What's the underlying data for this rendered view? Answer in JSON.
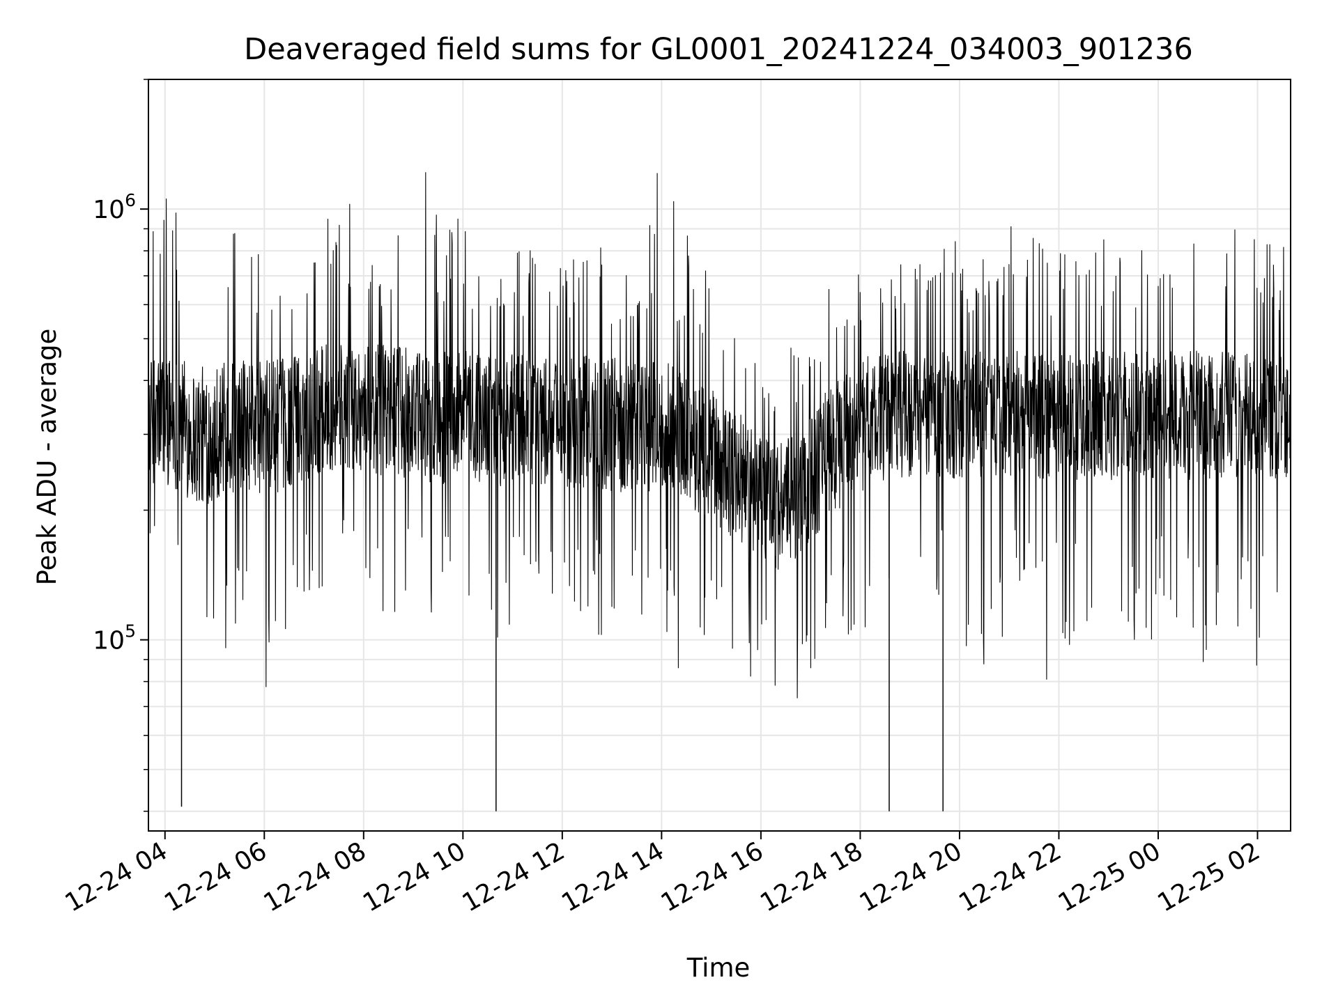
{
  "chart_data": {
    "type": "line",
    "title": "Deaveraged field sums for GL0001_20241224_034003_901236",
    "xlabel": "Time",
    "ylabel": "Peak ADU - average",
    "yscale": "log",
    "xlim": [
      "2024-12-24 03:40",
      "2024-12-25 02:40"
    ],
    "ylim": [
      36000,
      2000000
    ],
    "grid": true,
    "line_color": "#000000",
    "grid_color": "#e6e6e6",
    "x_ticks": [
      {
        "value": "2024-12-24 04:00",
        "label": "12-24 04"
      },
      {
        "value": "2024-12-24 06:00",
        "label": "12-24 06"
      },
      {
        "value": "2024-12-24 08:00",
        "label": "12-24 08"
      },
      {
        "value": "2024-12-24 10:00",
        "label": "12-24 10"
      },
      {
        "value": "2024-12-24 12:00",
        "label": "12-24 12"
      },
      {
        "value": "2024-12-24 14:00",
        "label": "12-24 14"
      },
      {
        "value": "2024-12-24 16:00",
        "label": "12-24 16"
      },
      {
        "value": "2024-12-24 18:00",
        "label": "12-24 18"
      },
      {
        "value": "2024-12-24 20:00",
        "label": "12-24 20"
      },
      {
        "value": "2024-12-24 22:00",
        "label": "12-24 22"
      },
      {
        "value": "2024-12-25 00:00",
        "label": "12-25 00"
      },
      {
        "value": "2024-12-25 02:00",
        "label": "12-25 02"
      }
    ],
    "y_major_ticks": [
      {
        "value": 100000,
        "base": "10",
        "exp": "5"
      },
      {
        "value": 1000000,
        "base": "10",
        "exp": "6"
      }
    ],
    "series": [
      {
        "x": [
          "2024-12-24 03:40",
          "2024-12-24 04:00",
          "2024-12-24 04:20",
          "2024-12-24 04:40",
          "2024-12-24 05:00",
          "2024-12-24 05:20",
          "2024-12-24 05:40",
          "2024-12-24 06:00",
          "2024-12-24 06:20",
          "2024-12-24 06:40",
          "2024-12-24 07:00",
          "2024-12-24 07:20",
          "2024-12-24 07:40",
          "2024-12-24 08:00",
          "2024-12-24 08:20",
          "2024-12-24 08:40",
          "2024-12-24 09:00",
          "2024-12-24 09:20",
          "2024-12-24 09:40",
          "2024-12-24 10:00",
          "2024-12-24 10:20",
          "2024-12-24 10:40",
          "2024-12-24 11:00",
          "2024-12-24 11:20",
          "2024-12-24 11:40",
          "2024-12-24 12:00",
          "2024-12-24 12:20",
          "2024-12-24 12:40",
          "2024-12-24 13:00",
          "2024-12-24 13:20",
          "2024-12-24 13:40",
          "2024-12-24 14:00",
          "2024-12-24 14:20",
          "2024-12-24 14:40",
          "2024-12-24 15:00",
          "2024-12-24 15:20",
          "2024-12-24 15:40",
          "2024-12-24 16:00",
          "2024-12-24 16:20",
          "2024-12-24 16:40",
          "2024-12-24 17:00",
          "2024-12-24 17:20",
          "2024-12-24 17:40",
          "2024-12-24 18:00",
          "2024-12-24 18:20",
          "2024-12-24 18:40",
          "2024-12-24 19:00",
          "2024-12-24 19:20",
          "2024-12-24 19:40",
          "2024-12-24 20:00",
          "2024-12-24 20:20",
          "2024-12-24 20:40",
          "2024-12-24 21:00",
          "2024-12-24 21:20",
          "2024-12-24 21:40",
          "2024-12-24 22:00",
          "2024-12-24 22:20",
          "2024-12-24 22:40",
          "2024-12-24 23:00",
          "2024-12-24 23:20",
          "2024-12-24 23:40",
          "2024-12-25 00:00",
          "2024-12-25 00:20",
          "2024-12-25 00:40",
          "2024-12-25 01:00",
          "2024-12-25 01:20",
          "2024-12-25 01:40",
          "2024-12-25 02:00",
          "2024-12-25 02:20",
          "2024-12-25 02:40"
        ],
        "y_low": [
          130000,
          160000,
          150000,
          70000,
          85000,
          95000,
          110000,
          60000,
          75000,
          130000,
          120000,
          140000,
          150000,
          135000,
          110000,
          105000,
          95000,
          90000,
          110000,
          120000,
          95000,
          80000,
          100000,
          110000,
          80000,
          100000,
          85000,
          100000,
          80000,
          90000,
          100000,
          110000,
          85000,
          90000,
          95000,
          100000,
          75000,
          85000,
          70000,
          65000,
          80000,
          90000,
          100000,
          90000,
          100000,
          110000,
          90000,
          95000,
          110000,
          90000,
          80000,
          95000,
          100000,
          110000,
          75000,
          95000,
          90000,
          85000,
          90000,
          100000,
          95000,
          100000,
          110000,
          90000,
          85000,
          95000,
          90000,
          85000,
          100000,
          120000
        ],
        "y_q1": [
          230000,
          230000,
          220000,
          200000,
          210000,
          215000,
          220000,
          215000,
          220000,
          230000,
          240000,
          245000,
          250000,
          245000,
          240000,
          240000,
          235000,
          230000,
          230000,
          235000,
          230000,
          225000,
          230000,
          230000,
          225000,
          225000,
          225000,
          225000,
          220000,
          220000,
          220000,
          220000,
          210000,
          200000,
          190000,
          175000,
          160000,
          150000,
          145000,
          150000,
          165000,
          185000,
          205000,
          220000,
          230000,
          235000,
          235000,
          235000,
          235000,
          235000,
          235000,
          235000,
          235000,
          235000,
          235000,
          235000,
          235000,
          235000,
          235000,
          235000,
          235000,
          235000,
          235000,
          235000,
          235000,
          235000,
          235000,
          235000,
          235000,
          235000
        ],
        "y_mid": [
          330000,
          340000,
          330000,
          310000,
          315000,
          320000,
          325000,
          320000,
          325000,
          335000,
          345000,
          350000,
          355000,
          350000,
          345000,
          345000,
          340000,
          335000,
          335000,
          340000,
          335000,
          330000,
          335000,
          335000,
          330000,
          330000,
          330000,
          330000,
          325000,
          325000,
          325000,
          325000,
          310000,
          295000,
          275000,
          255000,
          235000,
          220000,
          210000,
          215000,
          240000,
          270000,
          300000,
          320000,
          335000,
          340000,
          340000,
          340000,
          340000,
          340000,
          340000,
          340000,
          340000,
          340000,
          340000,
          340000,
          340000,
          340000,
          340000,
          340000,
          340000,
          340000,
          340000,
          340000,
          340000,
          340000,
          340000,
          340000,
          340000,
          340000
        ],
        "y_q3": [
          450000,
          470000,
          460000,
          430000,
          440000,
          445000,
          450000,
          445000,
          450000,
          465000,
          480000,
          490000,
          495000,
          490000,
          485000,
          480000,
          475000,
          470000,
          470000,
          475000,
          470000,
          460000,
          465000,
          465000,
          460000,
          460000,
          460000,
          460000,
          455000,
          455000,
          455000,
          455000,
          430000,
          410000,
          385000,
          360000,
          330000,
          305000,
          290000,
          300000,
          335000,
          380000,
          420000,
          450000,
          465000,
          470000,
          470000,
          470000,
          470000,
          470000,
          470000,
          470000,
          470000,
          470000,
          470000,
          470000,
          470000,
          470000,
          470000,
          470000,
          470000,
          470000,
          470000,
          470000,
          470000,
          470000,
          470000,
          470000,
          470000,
          470000
        ],
        "y_high": [
          850000,
          1300000,
          950000,
          700000,
          1300000,
          1050000,
          900000,
          800000,
          700000,
          780000,
          900000,
          1150000,
          1250000,
          980000,
          850000,
          900000,
          1450000,
          1250000,
          1000000,
          950000,
          800000,
          700000,
          800000,
          850000,
          900000,
          760000,
          1000000,
          900000,
          700000,
          800000,
          750000,
          1700000,
          900000,
          850000,
          750000,
          650000,
          560000,
          430000,
          420000,
          500000,
          480000,
          650000,
          750000,
          700000,
          900000,
          800000,
          750000,
          850000,
          850000,
          950000,
          800000,
          750000,
          1150000,
          850000,
          900000,
          850000,
          950000,
          800000,
          950000,
          900000,
          900000,
          900000,
          950000,
          850000,
          1000000,
          1050000,
          900000,
          950000,
          850000,
          820000
        ],
        "outliers_low": [
          {
            "x": "2024-12-24 04:20",
            "y": 41000
          },
          {
            "x": "2024-12-24 10:40",
            "y": 40000
          },
          {
            "x": "2024-12-24 18:35",
            "y": 40000
          },
          {
            "x": "2024-12-24 19:40",
            "y": 40000
          }
        ]
      }
    ]
  }
}
